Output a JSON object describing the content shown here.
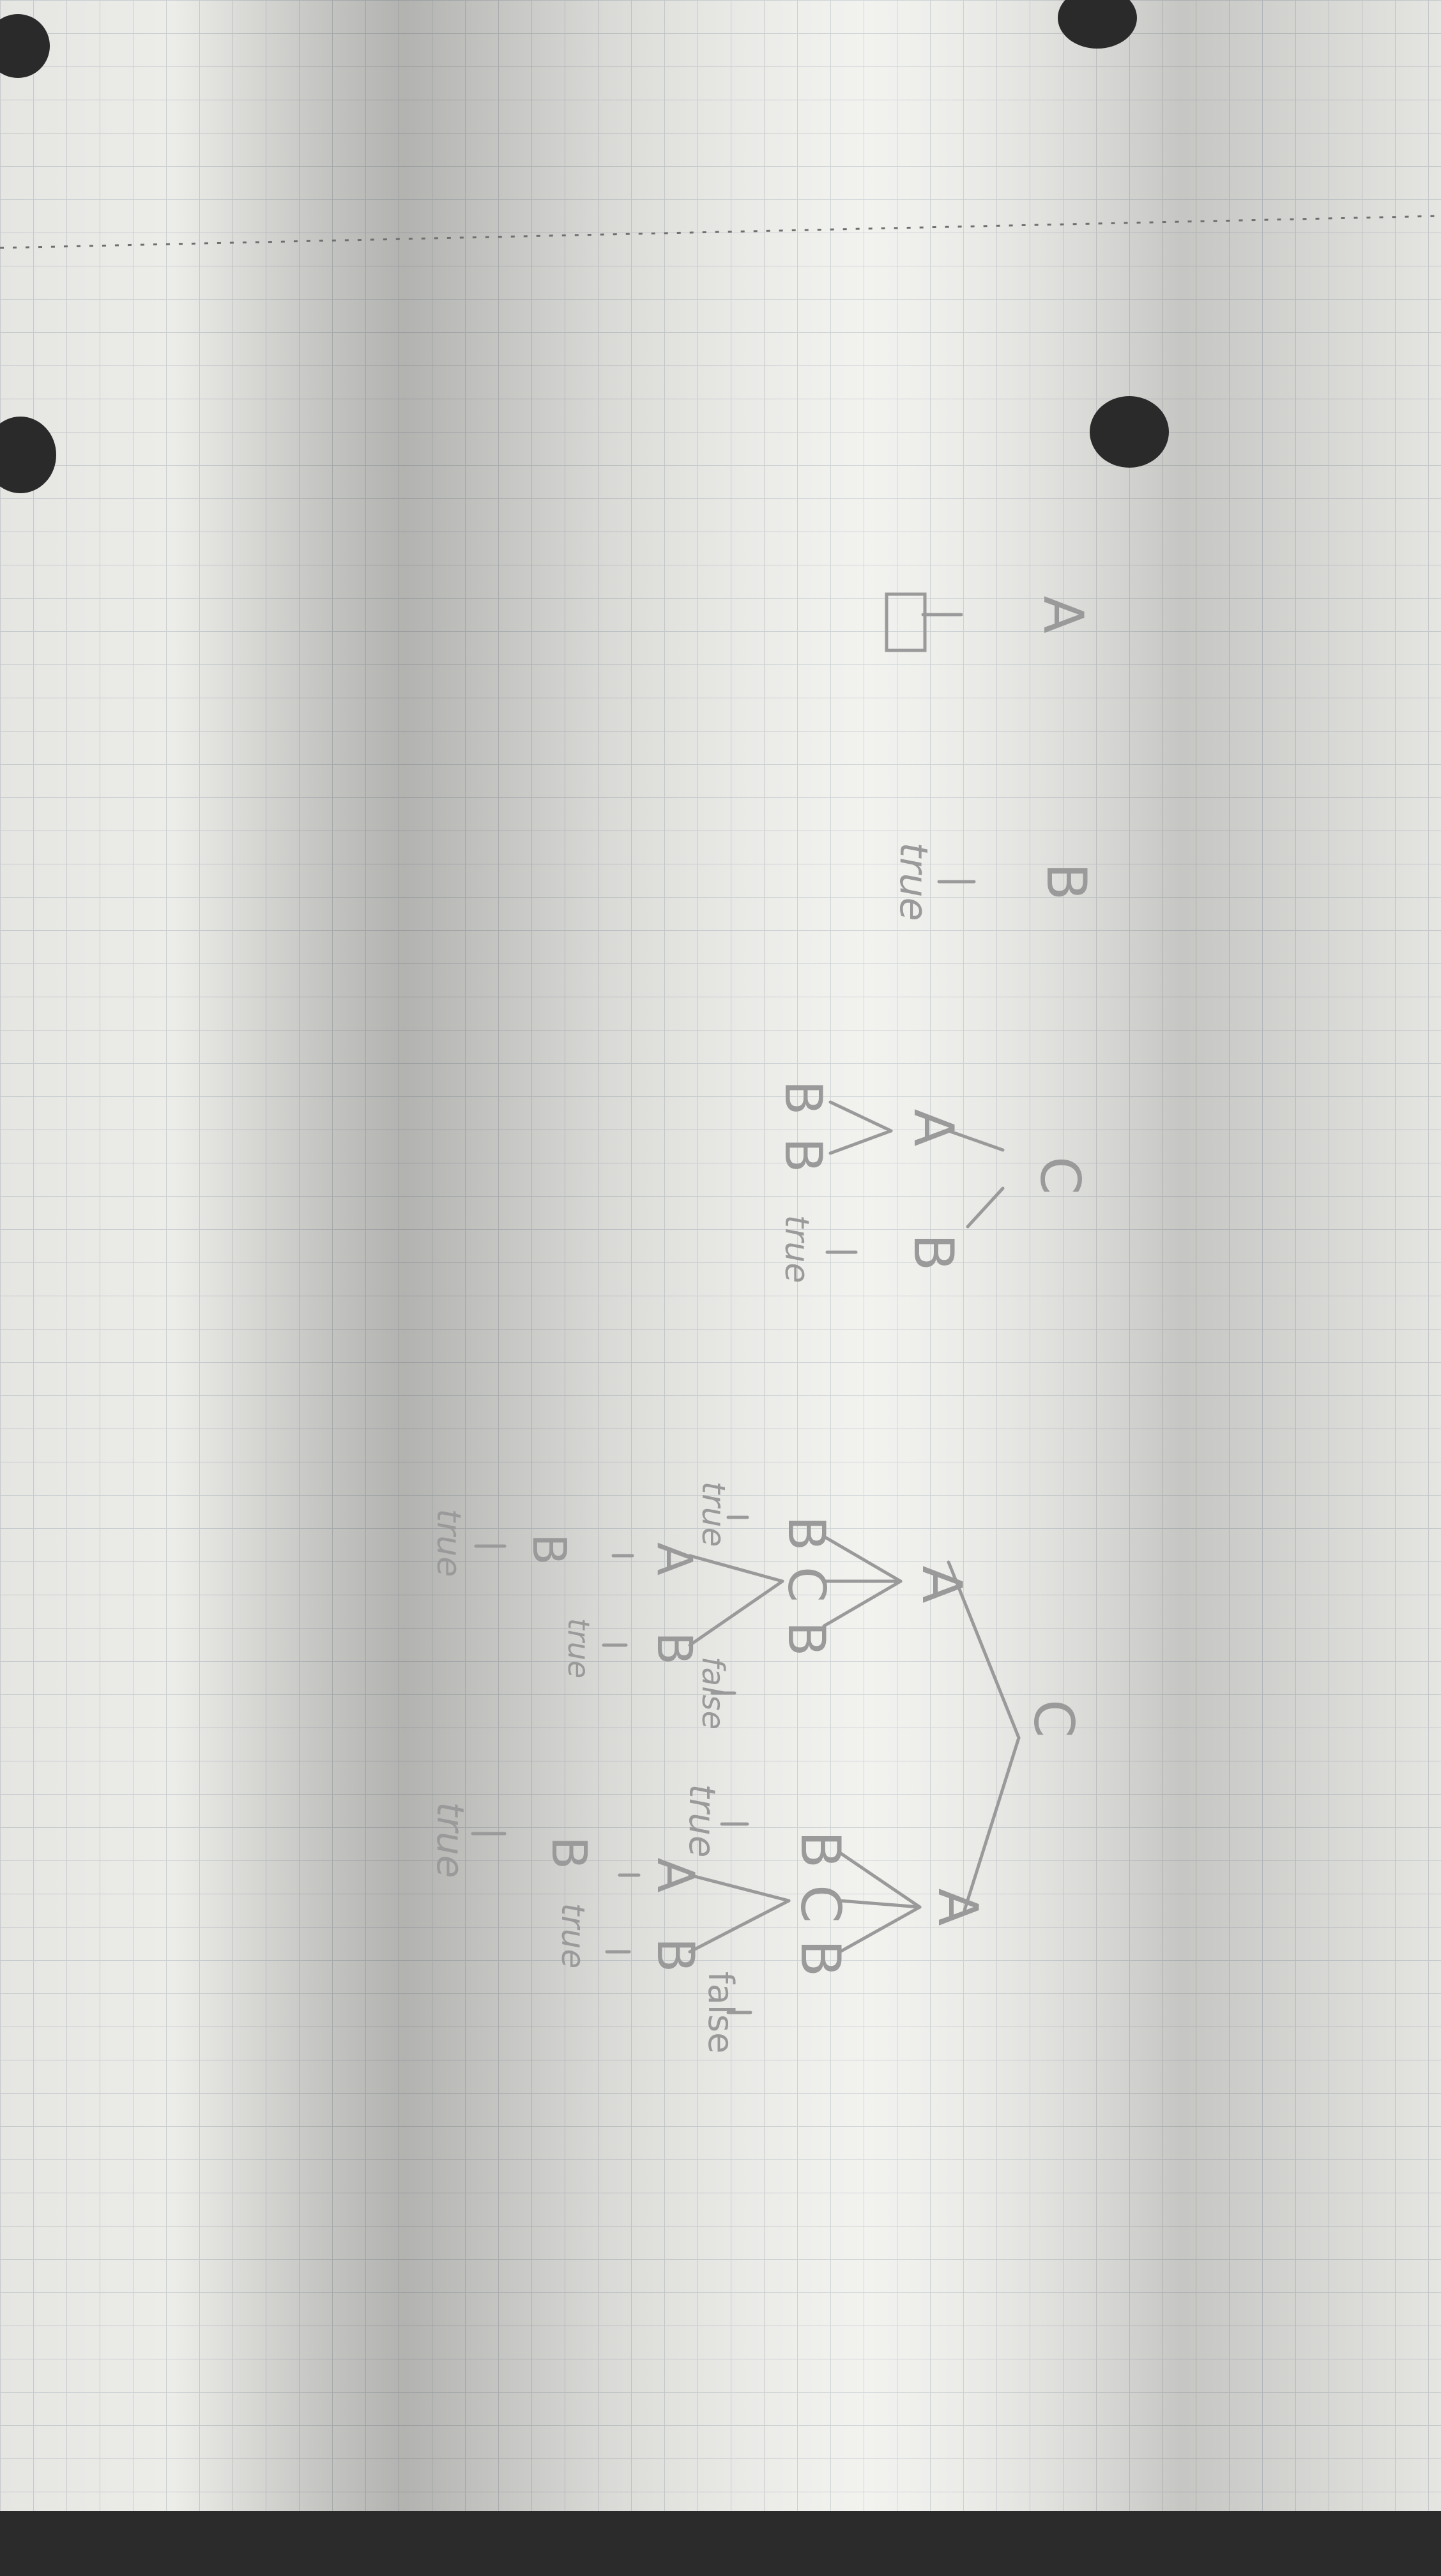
{
  "tree_a": {
    "root": "A",
    "child": "□"
  },
  "tree_b": {
    "root": "B",
    "leaf": "true"
  },
  "tree_c": {
    "root": "C",
    "left": "A",
    "right": "B",
    "left_leaf_1": "B",
    "left_leaf_2": "B",
    "right_leaf": "true"
  },
  "tree_big": {
    "root": "C",
    "upper_a": "A",
    "upper_a_c1": "B",
    "upper_a_c2": "C",
    "upper_a_c3": "B",
    "upper_a_c1_leaf": "true",
    "upper_a_c2_l": "A",
    "upper_a_c2_r": "B",
    "upper_a_c2_l_child": "B",
    "upper_a_c2_l_child_leaf": "true",
    "upper_a_c2_r_leaf": "true",
    "upper_a_c3_leaf": "false",
    "lower_a": "A",
    "lower_a_c1": "B",
    "lower_a_c2": "C",
    "lower_a_c3": "B",
    "lower_a_c1_leaf": "true",
    "lower_a_c2_l": "A",
    "lower_a_c2_r": "B",
    "lower_a_c2_l_child": "B",
    "lower_a_c2_l_child_leaf": "true",
    "lower_a_c2_r_leaf": "true",
    "lower_a_c3_leaf": "false"
  },
  "colors": {
    "paper": "#f1f1ee",
    "grid": "#cfd3d6",
    "pencil": "#9a9a9a",
    "hole": "#2a2a2a",
    "table": "#2b2b2b"
  }
}
